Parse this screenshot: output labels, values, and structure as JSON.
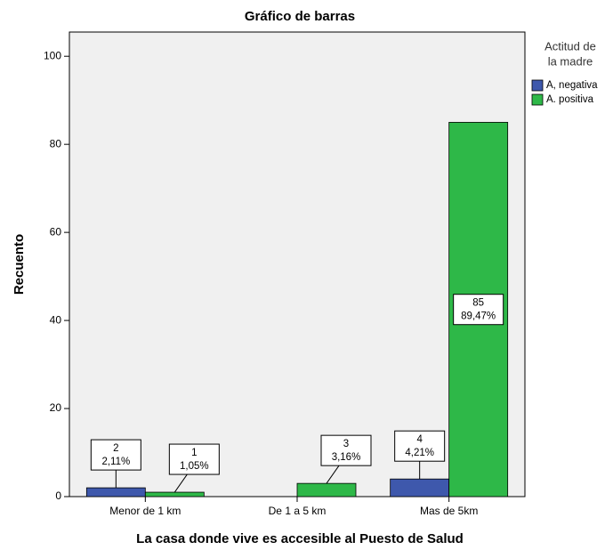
{
  "chart_data": {
    "type": "bar",
    "title": "Gráfico de barras",
    "x_label": "La casa donde vive es accesible al Puesto de Salud",
    "y_label": "Recuento",
    "categories": [
      "Menor de 1 km",
      "De 1 a 5 km",
      "Mas de 5km"
    ],
    "legend_title": [
      "Actitud de",
      "la madre"
    ],
    "legend_position": "right",
    "series": [
      {
        "name": "A, negativa",
        "color": "#3e58ac",
        "values": [
          2,
          null,
          4
        ],
        "value_labels": [
          [
            "2",
            "2,11%"
          ],
          null,
          [
            "4",
            "4,21%"
          ]
        ]
      },
      {
        "name": "A. positiva",
        "color": "#2eb848",
        "values": [
          1,
          3,
          85
        ],
        "value_labels": [
          [
            "1",
            "1,05%"
          ],
          [
            "3",
            "3,16%"
          ],
          [
            "85",
            "89,47%"
          ]
        ]
      }
    ],
    "ylim": [
      0,
      105.5
    ],
    "yticks": [
      0,
      20,
      40,
      60,
      80,
      100
    ]
  }
}
